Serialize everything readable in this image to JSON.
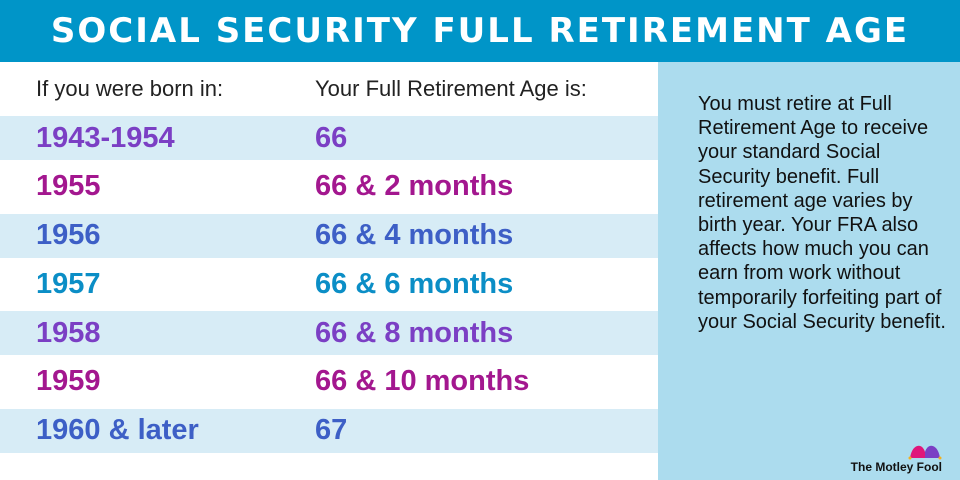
{
  "title": "SOCIAL SECURITY FULL RETIREMENT AGE",
  "table": {
    "headers": [
      "If you were born in:",
      "Your Full Retirement Age is:"
    ],
    "rows": [
      {
        "born": "1943-1954",
        "age": "66",
        "color": "#7b3fc4"
      },
      {
        "born": "1955",
        "age": "66 & 2 months",
        "color": "#a3178f"
      },
      {
        "born": "1956",
        "age": "66 & 4 months",
        "color": "#3d5fc6"
      },
      {
        "born": "1957",
        "age": "66 & 6 months",
        "color": "#0b8ec6"
      },
      {
        "born": "1958",
        "age": "66 & 8 months",
        "color": "#7b3fc4"
      },
      {
        "born": "1959",
        "age": "66 & 10 months",
        "color": "#a3178f"
      },
      {
        "born": "1960 & later",
        "age": "67",
        "color": "#3d5fc6"
      }
    ]
  },
  "sidebar": {
    "text": "You must retire at Full Retirement Age to receive your standard Social Security benefit. Full retirement age varies by birth year. Your FRA also affects how much you can earn from work without temporarily forfeiting part of your Social Security benefit."
  },
  "logo": {
    "text": "The Motley Fool",
    "icon": "jester-hat-icon"
  },
  "colors": {
    "header": "#0095c8",
    "panel": "#acdcee",
    "stripe": "#d7ecf6"
  }
}
